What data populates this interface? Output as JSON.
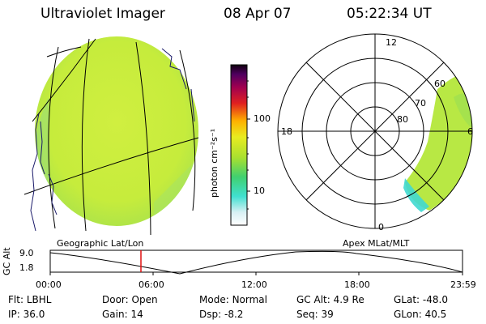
{
  "header": {
    "instrument": "Ultraviolet Imager",
    "date": "08 Apr 07",
    "time": "05:22:34 UT"
  },
  "colorbar": {
    "label": "photon cm⁻²s⁻¹",
    "ticks": [
      "100",
      "10"
    ]
  },
  "polar_plot": {
    "labels": {
      "top": "12",
      "left": "18",
      "right": "6",
      "bottom": "0"
    },
    "lat_rings": [
      "60",
      "70",
      "80"
    ]
  },
  "captions": {
    "left": "Geographic Lat/Lon",
    "right": "Apex MLat/MLT"
  },
  "altitude_strip": {
    "axis_label": "GC Alt",
    "y_ticks": [
      "9.0",
      "1.8"
    ],
    "x_ticks": [
      "00:00",
      "06:00",
      "12:00",
      "18:00",
      "23:59"
    ]
  },
  "status": {
    "row1": [
      {
        "label": "Flt:",
        "value": "LBHL"
      },
      {
        "label": "Door:",
        "value": "Open"
      },
      {
        "label": "Mode:",
        "value": "Normal"
      },
      {
        "label": "GC Alt:",
        "value": "4.9 Re"
      },
      {
        "label": "GLat:",
        "value": "-48.0"
      }
    ],
    "row2": [
      {
        "label": "IP:",
        "value": "36.0"
      },
      {
        "label": "Gain:",
        "value": "14"
      },
      {
        "label": "Dsp:",
        "value": "-8.2"
      },
      {
        "label": "Seq:",
        "value": "39"
      },
      {
        "label": "GLon:",
        "value": "40.5"
      }
    ]
  },
  "colors": {
    "disk_fill": "#c4ec3c",
    "marker": "#e01010"
  }
}
